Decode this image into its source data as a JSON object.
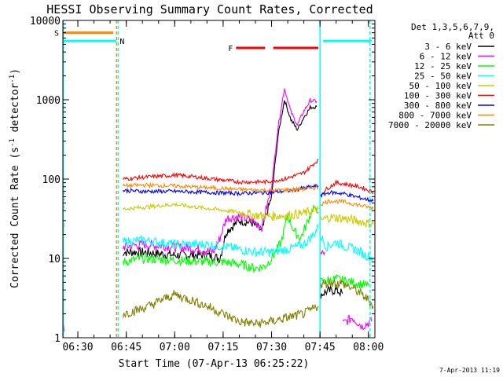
{
  "chart_data": {
    "type": "line",
    "title": "HESSI Observing Summary Count Rates, Corrected",
    "xlabel": "Start Time (07-Apr-13 06:25:22)",
    "ylabel": "Corrected Count Rate (s⁻¹ detector⁻¹)",
    "ylabel_parts": {
      "main": "Corrected Count Rate (s",
      "sup1": "-1",
      "mid": " detector",
      "sup2": "-1",
      "end": ")"
    },
    "y_scale": "log",
    "ylim": [
      1,
      10000
    ],
    "xlim": [
      "06:25:22",
      "08:02:00"
    ],
    "x_ticks": [
      "06:30",
      "06:45",
      "07:00",
      "07:15",
      "07:30",
      "07:45",
      "08:00"
    ],
    "y_ticks": [
      "1",
      "10",
      "100",
      "1000",
      "10000"
    ],
    "legend": {
      "placement": "right",
      "header": [
        "Det 1,3,5,6,7,9,",
        "Att 0"
      ],
      "entries": [
        {
          "label": "3 - 6 keV",
          "color": "#000000"
        },
        {
          "label": "6 - 12 keV",
          "color": "#ff00ff"
        },
        {
          "label": "12 - 25 keV",
          "color": "#00ff00"
        },
        {
          "label": "25 - 50 keV",
          "color": "#00ffff"
        },
        {
          "label": "50 - 100 keV",
          "color": "#cccc00"
        },
        {
          "label": "100 - 300 keV",
          "color": "#ff0000"
        },
        {
          "label": "300 - 800 keV",
          "color": "#0000ff"
        },
        {
          "label": "800 - 7000 keV",
          "color": "#ff8800"
        },
        {
          "label": "7000 - 20000 keV",
          "color": "#808000"
        }
      ]
    },
    "flags": [
      {
        "label": "S",
        "color": "#ff8800",
        "y": 7000,
        "segments": [
          [
            "06:25:22",
            "06:41:00"
          ]
        ]
      },
      {
        "label": "N",
        "color": "#00ffff",
        "y": 5500,
        "segments": [
          [
            "06:25:22",
            "06:42:00"
          ],
          [
            "07:46:00",
            "08:01:00"
          ]
        ]
      },
      {
        "label": "F",
        "color": "#ff0000",
        "y": 4500,
        "segments": [
          [
            "07:19:00",
            "07:28:00"
          ],
          [
            "07:30:30",
            "07:44:30"
          ]
        ]
      }
    ],
    "vlines": [
      {
        "t": "06:25:30",
        "color": "#00ffff",
        "style": "solid"
      },
      {
        "t": "06:42:00",
        "color": "#ff8800",
        "style": "dashed"
      },
      {
        "t": "06:42:30",
        "color": "#00ffff",
        "style": "dashed"
      },
      {
        "t": "07:45:00",
        "color": "#00ffff",
        "style": "solid"
      },
      {
        "t": "08:00:30",
        "color": "#00ffff",
        "style": "dashed"
      }
    ],
    "series": [
      {
        "name": "3 - 6 keV",
        "color": "#000000",
        "segments": [
          {
            "x": [
              "06:25:22",
              "06:25:50"
            ],
            "y": [
              3,
              3
            ]
          },
          {
            "x": [
              "06:44:00",
              "06:50:00",
              "07:00:00",
              "07:10:00",
              "07:14:00",
              "07:16:00",
              "07:20:00",
              "07:24:00",
              "07:27:00",
              "07:30:00",
              "07:32:00",
              "07:34:00",
              "07:36:00",
              "07:38:00",
              "07:40:00",
              "07:42:00",
              "07:44:00"
            ],
            "y": [
              12,
              12,
              11,
              11,
              10,
              22,
              30,
              28,
              22,
              60,
              350,
              1000,
              560,
              420,
              600,
              800,
              820
            ]
          },
          {
            "x": [
              "07:45:00",
              "07:47:00",
              "07:50:00",
              "07:52:00"
            ],
            "y": [
              3.5,
              3.8,
              4,
              3.6
            ]
          }
        ]
      },
      {
        "name": "6 - 12 keV",
        "color": "#ff00ff",
        "segments": [
          {
            "x": [
              "06:25:22",
              "06:25:50"
            ],
            "y": [
              1.5,
              1.2
            ]
          },
          {
            "x": [
              "06:44:00",
              "06:50:00",
              "07:00:00",
              "07:08:00",
              "07:12:00",
              "07:14:00",
              "07:16:00",
              "07:20:00",
              "07:24:00",
              "07:27:00",
              "07:30:00",
              "07:32:00",
              "07:34:00",
              "07:36:00",
              "07:38:00",
              "07:40:00",
              "07:42:00",
              "07:44:00"
            ],
            "y": [
              14,
              15,
              14,
              13,
              12,
              18,
              32,
              34,
              30,
              25,
              80,
              450,
              1400,
              700,
              480,
              720,
              980,
              950
            ]
          },
          {
            "x": [
              "07:45:00",
              "07:46:30"
            ],
            "y": [
              11,
              12
            ]
          },
          {
            "x": [
              "07:52:00",
              "07:55:00",
              "07:58:00",
              "08:01:00"
            ],
            "y": [
              1.5,
              1.8,
              1.4,
              1.6
            ]
          }
        ]
      },
      {
        "name": "12 - 25 keV",
        "color": "#00ff00",
        "segments": [
          {
            "x": [
              "06:25:22",
              "06:25:50"
            ],
            "y": [
              2,
              2
            ]
          },
          {
            "x": [
              "06:44:00",
              "06:50:00",
              "07:00:00",
              "07:10:00",
              "07:15:00",
              "07:20:00",
              "07:25:00",
              "07:28:00",
              "07:30:00",
              "07:33:00",
              "07:35:00",
              "07:37:00",
              "07:39:00",
              "07:41:00",
              "07:43:00",
              "07:44:30"
            ],
            "y": [
              9,
              10,
              9.5,
              9,
              9,
              8.5,
              7.5,
              8,
              10,
              16,
              35,
              22,
              18,
              28,
              45,
              38
            ]
          },
          {
            "x": [
              "07:45:00",
              "07:50:00",
              "07:55:00",
              "08:00:00"
            ],
            "y": [
              5,
              5.5,
              5,
              4.5
            ]
          }
        ]
      },
      {
        "name": "25 - 50 keV",
        "color": "#00ffff",
        "segments": [
          {
            "x": [
              "06:25:22",
              "06:25:50"
            ],
            "y": [
              3,
              3
            ]
          },
          {
            "x": [
              "06:44:00",
              "06:50:00",
              "07:00:00",
              "07:10:00",
              "07:16:00",
              "07:20:00",
              "07:25:00",
              "07:30:00",
              "07:35:00",
              "07:40:00",
              "07:43:00",
              "07:44:30"
            ],
            "y": [
              16,
              17,
              15,
              15,
              14,
              13,
              12,
              12,
              13,
              15,
              20,
              25
            ]
          },
          {
            "x": [
              "07:45:00",
              "07:47:00",
              "07:50:00",
              "07:53:00",
              "07:56:00",
              "07:59:00",
              "08:01:30"
            ],
            "y": [
              20,
              14,
              16,
              14,
              13,
              11,
              10
            ]
          }
        ]
      },
      {
        "name": "50 - 100 keV",
        "color": "#cccc00",
        "segments": [
          {
            "x": [
              "06:25:22",
              "06:25:50"
            ],
            "y": [
              25,
              25
            ]
          },
          {
            "x": [
              "06:44:00",
              "06:50:00",
              "07:00:00",
              "07:05:00",
              "07:12:00",
              "07:20:00",
              "07:25:00",
              "07:30:00",
              "07:35:00",
              "07:40:00",
              "07:44:30"
            ],
            "y": [
              42,
              44,
              48,
              45,
              42,
              38,
              35,
              34,
              35,
              37,
              42
            ]
          },
          {
            "x": [
              "07:45:00",
              "07:48:00",
              "07:52:00",
              "07:56:00",
              "08:01:30"
            ],
            "y": [
              30,
              33,
              32,
              30,
              27
            ]
          }
        ]
      },
      {
        "name": "100 - 300 keV",
        "color": "#ff0000",
        "segments": [
          {
            "x": [
              "06:25:22",
              "06:25:50"
            ],
            "y": [
              65,
              65
            ]
          },
          {
            "x": [
              "06:44:00",
              "06:50:00",
              "07:00:00",
              "07:05:00",
              "07:12:00",
              "07:20:00",
              "07:28:00",
              "07:34:00",
              "07:40:00",
              "07:43:00",
              "07:44:30"
            ],
            "y": [
              100,
              105,
              112,
              108,
              100,
              92,
              92,
              100,
              120,
              155,
              175
            ]
          },
          {
            "x": [
              "07:45:00",
              "07:47:00",
              "07:50:00",
              "07:54:00",
              "07:58:00",
              "08:01:30"
            ],
            "y": [
              62,
              75,
              90,
              85,
              78,
              68
            ]
          }
        ]
      },
      {
        "name": "300 - 800 keV",
        "color": "#0000ff",
        "segments": [
          {
            "x": [
              "06:25:22",
              "06:25:50"
            ],
            "y": [
              55,
              55
            ]
          },
          {
            "x": [
              "06:44:00",
              "06:50:00",
              "07:00:00",
              "07:10:00",
              "07:20:00",
              "07:30:00",
              "07:36:00",
              "07:40:00",
              "07:44:30"
            ],
            "y": [
              72,
              70,
              70,
              68,
              66,
              68,
              72,
              77,
              82
            ]
          },
          {
            "x": [
              "07:45:00",
              "07:48:00",
              "07:52:00",
              "07:56:00",
              "08:01:30"
            ],
            "y": [
              62,
              68,
              66,
              60,
              53
            ]
          }
        ]
      },
      {
        "name": "800 - 7000 keV",
        "color": "#ff8800",
        "segments": [
          {
            "x": [
              "06:25:22",
              "06:25:50"
            ],
            "y": [
              45,
              45
            ]
          },
          {
            "x": [
              "06:44:00",
              "06:50:00",
              "07:00:00",
              "07:10:00",
              "07:20:00",
              "07:30:00",
              "07:38:00",
              "07:44:30"
            ],
            "y": [
              82,
              84,
              82,
              78,
              74,
              72,
              74,
              78
            ]
          },
          {
            "x": [
              "07:45:00",
              "07:48:00",
              "07:52:00",
              "07:56:00",
              "08:01:30"
            ],
            "y": [
              48,
              53,
              52,
              48,
              43
            ]
          }
        ]
      },
      {
        "name": "7000 - 20000 keV",
        "color": "#808000",
        "segments": [
          {
            "x": [
              "06:25:22",
              "06:25:50"
            ],
            "y": [
              2,
              2
            ]
          },
          {
            "x": [
              "06:44:00",
              "06:48:00",
              "06:52:00",
              "06:56:00",
              "07:00:00",
              "07:05:00",
              "07:10:00",
              "07:15:00",
              "07:20:00",
              "07:25:00",
              "07:30:00",
              "07:35:00",
              "07:40:00",
              "07:44:30"
            ],
            "y": [
              2,
              2.2,
              2.5,
              3,
              3.5,
              3,
              2.5,
              2,
              1.6,
              1.5,
              1.6,
              1.8,
              2,
              2.5
            ]
          },
          {
            "x": [
              "07:45:00",
              "07:48:00",
              "07:52:00",
              "07:56:00",
              "08:00:00",
              "08:01:30"
            ],
            "y": [
              4.5,
              5,
              4.8,
              4,
              3,
              2.5
            ]
          }
        ]
      }
    ]
  },
  "footer": {
    "timestamp": "7-Apr-2013 11:19"
  }
}
